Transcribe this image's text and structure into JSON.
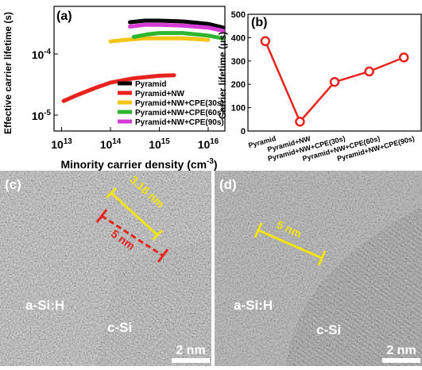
{
  "chart_data": [
    {
      "type": "line",
      "label": "(a)",
      "x_label": "Minority carrier density (cm^-3)",
      "y_label": "Effective carrier lifetime (s)",
      "log_x": true,
      "log_y": true,
      "xlim": [
        7000000000000.0,
        2.2e+16
      ],
      "ylim": [
        5.5e-06,
        0.0006
      ],
      "xticks": [
        {
          "value": 10000000000000.0,
          "label": "10^13"
        },
        {
          "value": 100000000000000.0,
          "label": "10^14"
        },
        {
          "value": 1000000000000000.0,
          "label": "10^15"
        },
        {
          "value": 1e+16,
          "label": "10^16"
        }
      ],
      "yticks": [
        {
          "value": 1e-05,
          "label": "10^-5"
        },
        {
          "value": 0.0001,
          "label": "10^-4"
        }
      ],
      "legend": "lower right",
      "series": [
        {
          "name": "Pyramid",
          "color": "#000000",
          "x": [
            250000000000000.0,
            500000000000000.0,
            1000000000000000.0,
            3000000000000000.0,
            1e+16,
            2e+16
          ],
          "values": [
            0.00033,
            0.00035,
            0.00035,
            0.00034,
            0.00031,
            0.00027
          ]
        },
        {
          "name": "Pyramid+NW",
          "color": "#e8231e",
          "x": [
            11000000000000.0,
            20000000000000.0,
            50000000000000.0,
            100000000000000.0,
            300000000000000.0,
            1000000000000000.0,
            2000000000000000.0
          ],
          "values": [
            1.7e-05,
            2.1e-05,
            2.8e-05,
            3.4e-05,
            4e-05,
            4.4e-05,
            4.5e-05
          ]
        },
        {
          "name": "Pyramid+NW+CPE(30s)",
          "color": "#f5c518",
          "x": [
            100000000000000.0,
            200000000000000.0,
            500000000000000.0,
            1000000000000000.0,
            3000000000000000.0,
            1e+16
          ],
          "values": [
            0.00016,
            0.00017,
            0.00018,
            0.00018,
            0.00018,
            0.00017
          ]
        },
        {
          "name": "Pyramid+NW+CPE(60s)",
          "color": "#2fb52f",
          "x": [
            300000000000000.0,
            600000000000000.0,
            1000000000000000.0,
            3000000000000000.0,
            1e+16,
            2e+16
          ],
          "values": [
            0.00019,
            0.00021,
            0.00022,
            0.00022,
            0.0002,
            0.00018
          ]
        },
        {
          "name": "Pyramid+NW+CPE(90s)",
          "color": "#d63bd6",
          "x": [
            250000000000000.0,
            500000000000000.0,
            1000000000000000.0,
            3000000000000000.0,
            1e+16,
            2e+16
          ],
          "values": [
            0.00028,
            0.0003,
            0.0003,
            0.00029,
            0.00027,
            0.00024
          ]
        }
      ]
    },
    {
      "type": "line",
      "label": "(b)",
      "y_label": "Carrier lifetime (μs)",
      "categories": [
        "Pyramid",
        "Pyramid+NW",
        "Pyramid+NW+CPE(30s)",
        "Pyramid+NW+CPE(60s)",
        "Pyramid+NW+CPE(90s)"
      ],
      "ylim": [
        0,
        500
      ],
      "yticks": [
        0,
        100,
        200,
        300,
        400,
        500
      ],
      "markers": true,
      "series": [
        {
          "color": "#e8231e",
          "values": [
            385,
            40,
            210,
            255,
            315
          ]
        }
      ]
    }
  ],
  "images": [
    {
      "label": "(c)",
      "annotations": [
        "3.16 nm",
        "5 nm",
        "a-Si:H",
        "c-Si"
      ],
      "scale_bar": "2 nm"
    },
    {
      "label": "(d)",
      "annotations": [
        "5 nm",
        "a-Si:H",
        "c-Si"
      ],
      "scale_bar": "2 nm"
    }
  ]
}
